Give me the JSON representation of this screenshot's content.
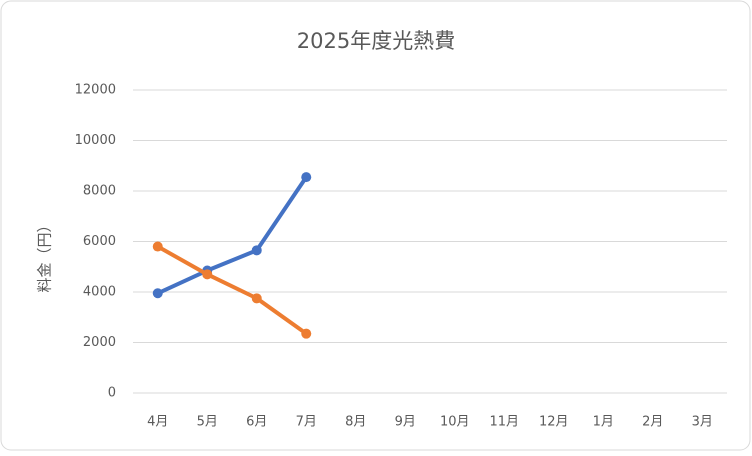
{
  "chart_data": {
    "type": "line",
    "title": "2025年度光熱費",
    "y_label": "料金（円）",
    "categories": [
      "4月",
      "5月",
      "6月",
      "7月",
      "8月",
      "9月",
      "10月",
      "11月",
      "12月",
      "1月",
      "2月",
      "3月"
    ],
    "series": [
      {
        "color": "#4472c4",
        "values": [
          3950,
          4850,
          5650,
          8550,
          null,
          null,
          null,
          null,
          null,
          null,
          null,
          null
        ]
      },
      {
        "color": "#ed7d31",
        "values": [
          5800,
          4700,
          3750,
          2350,
          null,
          null,
          null,
          null,
          null,
          null,
          null,
          null
        ]
      }
    ],
    "ylim": [
      0,
      12000
    ],
    "yticks": [
      0,
      2000,
      4000,
      6000,
      8000,
      10000,
      12000
    ],
    "grid": true
  }
}
